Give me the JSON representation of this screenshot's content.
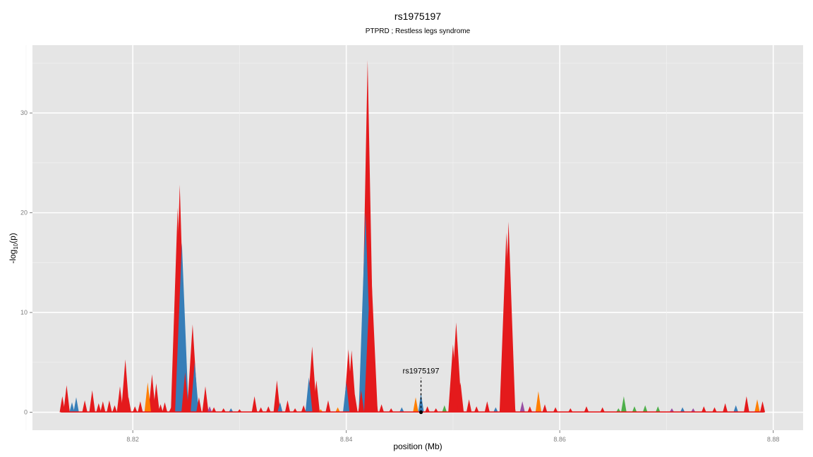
{
  "chart_data": {
    "type": "area",
    "title": "rs1975197",
    "subtitle": "PTPRD ; Restless legs syndrome",
    "xlabel": "position (Mb)",
    "ylabel": "-log10(p)",
    "xlim": [
      8.8106,
      8.8828
    ],
    "ylim": [
      -1.8,
      36.8
    ],
    "x_ticks": [
      8.82,
      8.84,
      8.86,
      8.88
    ],
    "x_tick_labels": [
      "8.82",
      "8.84",
      "8.86",
      "8.88"
    ],
    "y_ticks": [
      0,
      10,
      20,
      30
    ],
    "y_tick_labels": [
      "0",
      "10",
      "20",
      "30"
    ],
    "grid": true,
    "background": "#e5e5e5",
    "colors": {
      "red": "#e41a1c",
      "blue": "#377eb8",
      "green": "#4daf4a",
      "purple": "#984ea3",
      "orange": "#ff7f00"
    },
    "highlight": {
      "label": "rs1975197",
      "x": 8.847,
      "y": 1.9
    },
    "peaks": [
      {
        "x": 8.8134,
        "y": 1.6,
        "c": "red"
      },
      {
        "x": 8.8138,
        "y": 2.7,
        "c": "red"
      },
      {
        "x": 8.8143,
        "y": 1.0,
        "c": "blue"
      },
      {
        "x": 8.8147,
        "y": 1.5,
        "c": "blue"
      },
      {
        "x": 8.8155,
        "y": 1.2,
        "c": "red"
      },
      {
        "x": 8.8162,
        "y": 2.2,
        "c": "red"
      },
      {
        "x": 8.8168,
        "y": 0.9,
        "c": "red"
      },
      {
        "x": 8.8172,
        "y": 1.1,
        "c": "red"
      },
      {
        "x": 8.8178,
        "y": 1.2,
        "c": "red"
      },
      {
        "x": 8.8183,
        "y": 0.7,
        "c": "red"
      },
      {
        "x": 8.8188,
        "y": 2.6,
        "c": "red"
      },
      {
        "x": 8.8193,
        "y": 5.3,
        "c": "red"
      },
      {
        "x": 8.8196,
        "y": 1.5,
        "c": "red"
      },
      {
        "x": 8.8202,
        "y": 0.6,
        "c": "red"
      },
      {
        "x": 8.8207,
        "y": 1.1,
        "c": "red"
      },
      {
        "x": 8.8214,
        "y": 3.0,
        "c": "orange"
      },
      {
        "x": 8.8218,
        "y": 3.8,
        "c": "red"
      },
      {
        "x": 8.8222,
        "y": 2.9,
        "c": "red"
      },
      {
        "x": 8.8226,
        "y": 0.8,
        "c": "red"
      },
      {
        "x": 8.823,
        "y": 1.0,
        "c": "red"
      },
      {
        "x": 8.8236,
        "y": 0.5,
        "c": "red"
      },
      {
        "x": 8.8242,
        "y": 20.5,
        "c": "red"
      },
      {
        "x": 8.8244,
        "y": 22.8,
        "c": "red"
      },
      {
        "x": 8.8246,
        "y": 17.0,
        "c": "blue"
      },
      {
        "x": 8.8249,
        "y": 4.0,
        "c": "red"
      },
      {
        "x": 8.8252,
        "y": 1.2,
        "c": "red"
      },
      {
        "x": 8.8256,
        "y": 8.8,
        "c": "red"
      },
      {
        "x": 8.8258,
        "y": 5.0,
        "c": "blue"
      },
      {
        "x": 8.8262,
        "y": 1.5,
        "c": "red"
      },
      {
        "x": 8.8268,
        "y": 2.6,
        "c": "red"
      },
      {
        "x": 8.8272,
        "y": 0.6,
        "c": "purple"
      },
      {
        "x": 8.8276,
        "y": 0.5,
        "c": "red"
      },
      {
        "x": 8.8285,
        "y": 0.4,
        "c": "red"
      },
      {
        "x": 8.8292,
        "y": 0.4,
        "c": "blue"
      },
      {
        "x": 8.83,
        "y": 0.3,
        "c": "red"
      },
      {
        "x": 8.8314,
        "y": 1.6,
        "c": "red"
      },
      {
        "x": 8.832,
        "y": 0.5,
        "c": "red"
      },
      {
        "x": 8.8327,
        "y": 0.6,
        "c": "red"
      },
      {
        "x": 8.8335,
        "y": 3.2,
        "c": "red"
      },
      {
        "x": 8.8338,
        "y": 1.0,
        "c": "blue"
      },
      {
        "x": 8.8345,
        "y": 1.2,
        "c": "red"
      },
      {
        "x": 8.8352,
        "y": 0.4,
        "c": "red"
      },
      {
        "x": 8.836,
        "y": 0.7,
        "c": "red"
      },
      {
        "x": 8.8365,
        "y": 3.5,
        "c": "blue"
      },
      {
        "x": 8.8368,
        "y": 6.6,
        "c": "red"
      },
      {
        "x": 8.8372,
        "y": 3.2,
        "c": "red"
      },
      {
        "x": 8.8376,
        "y": 0.3,
        "c": "orange"
      },
      {
        "x": 8.8383,
        "y": 1.2,
        "c": "red"
      },
      {
        "x": 8.8392,
        "y": 0.5,
        "c": "orange"
      },
      {
        "x": 8.84,
        "y": 3.0,
        "c": "blue"
      },
      {
        "x": 8.8402,
        "y": 6.3,
        "c": "red"
      },
      {
        "x": 8.8405,
        "y": 6.2,
        "c": "red"
      },
      {
        "x": 8.8408,
        "y": 1.8,
        "c": "red"
      },
      {
        "x": 8.8414,
        "y": 2.2,
        "c": "red"
      },
      {
        "x": 8.8418,
        "y": 20.0,
        "c": "blue"
      },
      {
        "x": 8.842,
        "y": 35.3,
        "c": "red"
      },
      {
        "x": 8.8423,
        "y": 15.0,
        "c": "red"
      },
      {
        "x": 8.8427,
        "y": 2.2,
        "c": "red"
      },
      {
        "x": 8.8433,
        "y": 0.8,
        "c": "red"
      },
      {
        "x": 8.8442,
        "y": 0.4,
        "c": "red"
      },
      {
        "x": 8.8452,
        "y": 0.5,
        "c": "blue"
      },
      {
        "x": 8.8465,
        "y": 1.5,
        "c": "orange"
      },
      {
        "x": 8.847,
        "y": 1.9,
        "c": "blue"
      },
      {
        "x": 8.8476,
        "y": 0.6,
        "c": "red"
      },
      {
        "x": 8.8484,
        "y": 0.4,
        "c": "red"
      },
      {
        "x": 8.8492,
        "y": 0.7,
        "c": "green"
      },
      {
        "x": 8.85,
        "y": 6.8,
        "c": "red"
      },
      {
        "x": 8.8503,
        "y": 9.0,
        "c": "red"
      },
      {
        "x": 8.8507,
        "y": 3.0,
        "c": "red"
      },
      {
        "x": 8.8515,
        "y": 1.3,
        "c": "red"
      },
      {
        "x": 8.8522,
        "y": 0.6,
        "c": "red"
      },
      {
        "x": 8.8532,
        "y": 1.1,
        "c": "red"
      },
      {
        "x": 8.854,
        "y": 0.5,
        "c": "blue"
      },
      {
        "x": 8.855,
        "y": 18.0,
        "c": "red"
      },
      {
        "x": 8.8552,
        "y": 19.1,
        "c": "red"
      },
      {
        "x": 8.8556,
        "y": 2.0,
        "c": "red"
      },
      {
        "x": 8.8565,
        "y": 1.1,
        "c": "purple"
      },
      {
        "x": 8.8572,
        "y": 0.6,
        "c": "red"
      },
      {
        "x": 8.858,
        "y": 2.1,
        "c": "orange"
      },
      {
        "x": 8.8586,
        "y": 0.8,
        "c": "red"
      },
      {
        "x": 8.8596,
        "y": 0.5,
        "c": "red"
      },
      {
        "x": 8.861,
        "y": 0.4,
        "c": "red"
      },
      {
        "x": 8.8625,
        "y": 0.6,
        "c": "red"
      },
      {
        "x": 8.864,
        "y": 0.5,
        "c": "red"
      },
      {
        "x": 8.8655,
        "y": 0.4,
        "c": "green"
      },
      {
        "x": 8.866,
        "y": 1.6,
        "c": "green"
      },
      {
        "x": 8.867,
        "y": 0.6,
        "c": "green"
      },
      {
        "x": 8.868,
        "y": 0.7,
        "c": "green"
      },
      {
        "x": 8.8692,
        "y": 0.6,
        "c": "green"
      },
      {
        "x": 8.8705,
        "y": 0.4,
        "c": "purple"
      },
      {
        "x": 8.8715,
        "y": 0.5,
        "c": "blue"
      },
      {
        "x": 8.8725,
        "y": 0.4,
        "c": "purple"
      },
      {
        "x": 8.8735,
        "y": 0.6,
        "c": "red"
      },
      {
        "x": 8.8745,
        "y": 0.5,
        "c": "red"
      },
      {
        "x": 8.8755,
        "y": 0.9,
        "c": "red"
      },
      {
        "x": 8.8765,
        "y": 0.7,
        "c": "blue"
      },
      {
        "x": 8.8775,
        "y": 1.6,
        "c": "red"
      },
      {
        "x": 8.8785,
        "y": 1.3,
        "c": "orange"
      },
      {
        "x": 8.879,
        "y": 1.1,
        "c": "red"
      }
    ]
  }
}
